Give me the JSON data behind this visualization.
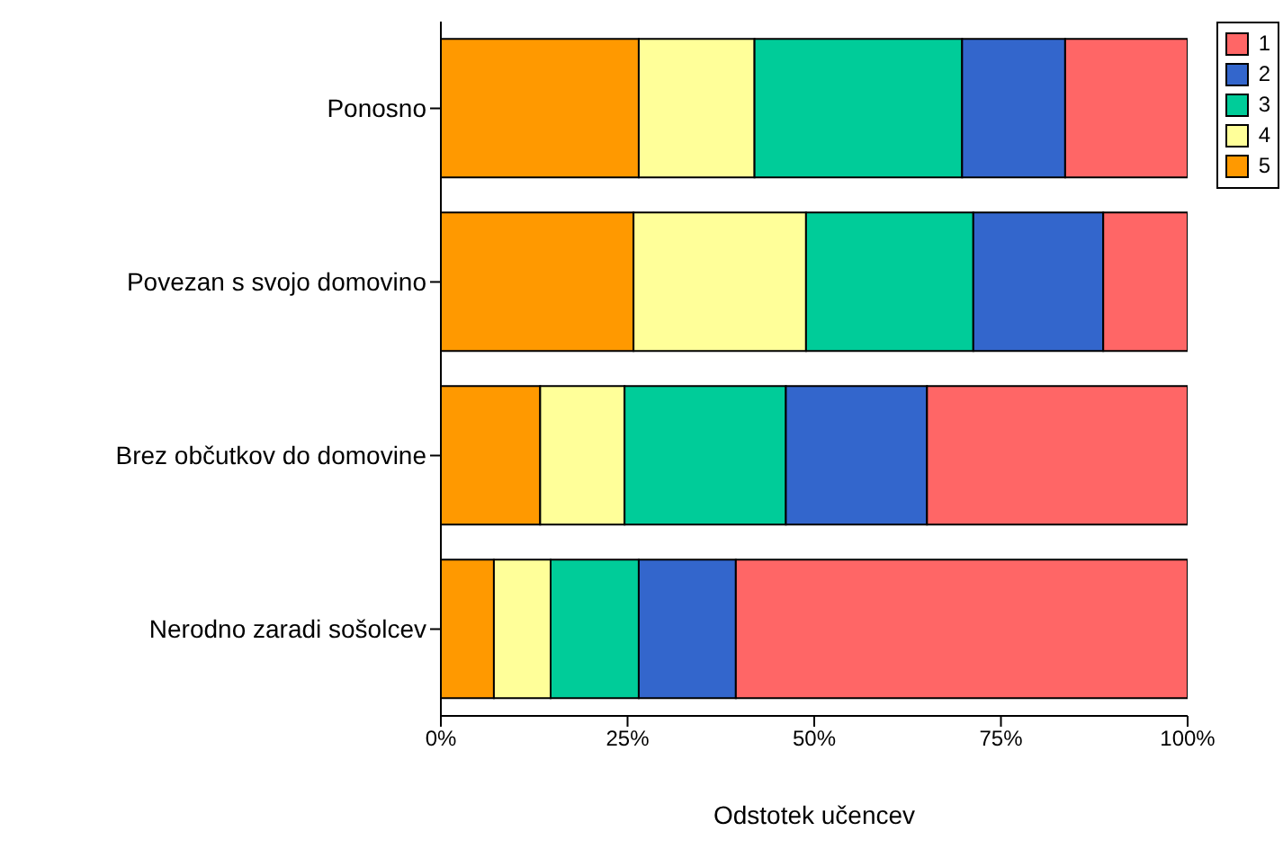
{
  "chart_data": {
    "type": "bar",
    "orientation": "horizontal",
    "stacked": true,
    "xlabel": "Odstotek učencev",
    "categories": [
      "Ponosno",
      "Povezan s svojo domovino",
      "Brez občutkov do domovine",
      "Nerodno zaradi sošolcev"
    ],
    "series": [
      {
        "name": "5",
        "color": "#ff9900",
        "values": [
          26.5,
          25.8,
          13.3,
          7.1
        ]
      },
      {
        "name": "4",
        "color": "#ffff99",
        "values": [
          15.5,
          23.1,
          11.3,
          7.6
        ]
      },
      {
        "name": "3",
        "color": "#00cc99",
        "values": [
          27.8,
          22.4,
          21.6,
          11.8
        ]
      },
      {
        "name": "2",
        "color": "#3366cc",
        "values": [
          13.8,
          17.4,
          18.9,
          13.0
        ]
      },
      {
        "name": "1",
        "color": "#ff6666",
        "values": [
          16.4,
          11.3,
          34.9,
          60.5
        ]
      }
    ],
    "xlim": [
      0,
      100
    ],
    "xticks": [
      {
        "value": 0,
        "label": "0%"
      },
      {
        "value": 25,
        "label": "25%"
      },
      {
        "value": 50,
        "label": "50%"
      },
      {
        "value": 75,
        "label": "75%"
      },
      {
        "value": 100,
        "label": "100%"
      }
    ],
    "grid": false,
    "legend": "top right"
  }
}
